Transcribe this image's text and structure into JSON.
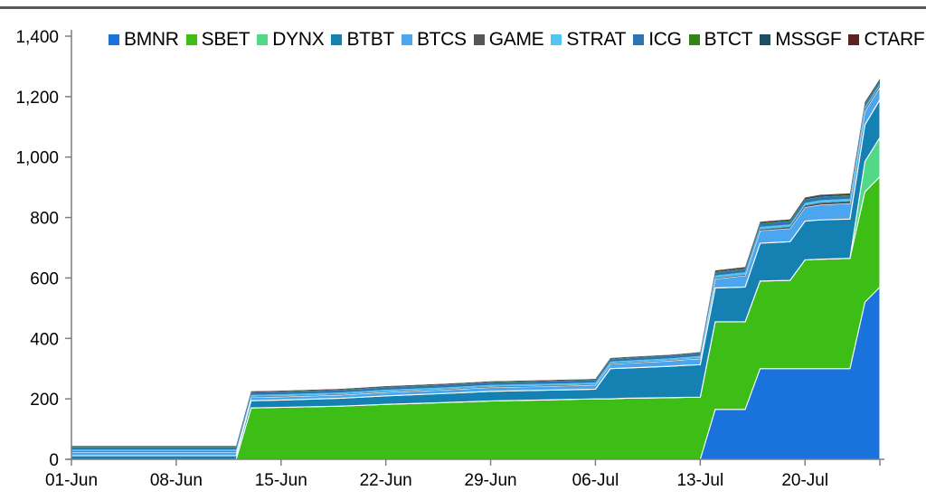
{
  "page": {
    "background": "#ffffff",
    "top_rule_color": "#58595b",
    "axis_color": "#7f7f7f",
    "text_color": "#000000"
  },
  "chart_data": {
    "type": "area",
    "stacked": true,
    "title": "",
    "xlabel": "",
    "ylabel": "",
    "grid": false,
    "legend_position": "top-inside",
    "ylim": [
      0,
      1400
    ],
    "y_ticks": [
      0,
      200,
      400,
      600,
      800,
      1000,
      1200,
      1400
    ],
    "y_tick_labels": [
      "0",
      "200",
      "400",
      "600",
      "800",
      "1,000",
      "1,200",
      "1,400"
    ],
    "x_range_days": [
      0,
      54
    ],
    "x_tick_days": [
      0,
      7,
      14,
      21,
      28,
      35,
      42,
      49,
      54
    ],
    "x_tick_labels": [
      "01-Jun",
      "08-Jun",
      "15-Jun",
      "22-Jun",
      "29-Jun",
      "06-Jul",
      "13-Jul",
      "20-Jul",
      ""
    ],
    "x_days": [
      0,
      4,
      11,
      12,
      14,
      18,
      21,
      25,
      28,
      32,
      35,
      36,
      37,
      40,
      41,
      42,
      43,
      45,
      46,
      48,
      49,
      50,
      52,
      53,
      54
    ],
    "point_labels": [
      "01-Jun",
      "05-Jun",
      "12-Jun",
      "13-Jun",
      "15-Jun",
      "19-Jun",
      "22-Jun",
      "26-Jun",
      "29-Jun",
      "03-Jul",
      "06-Jul",
      "07-Jul",
      "08-Jul",
      "11-Jul",
      "12-Jul",
      "13-Jul",
      "14-Jul",
      "16-Jul",
      "17-Jul",
      "19-Jul",
      "20-Jul",
      "21-Jul",
      "23-Jul",
      "24-Jul",
      "25-Jul"
    ],
    "series": [
      {
        "name": "BMNR",
        "color": "#1a72dd",
        "values": [
          0,
          0,
          0,
          0,
          0,
          0,
          0,
          0,
          0,
          0,
          0,
          0,
          0,
          0,
          0,
          0,
          165,
          165,
          300,
          300,
          300,
          300,
          300,
          520,
          570
        ]
      },
      {
        "name": "SBET",
        "color": "#3cbe17",
        "values": [
          0,
          0,
          0,
          170,
          172,
          176,
          182,
          188,
          193,
          197,
          200,
          200,
          202,
          204,
          205,
          205,
          290,
          290,
          290,
          292,
          360,
          362,
          365,
          365,
          365
        ]
      },
      {
        "name": "DYNX",
        "color": "#52d985",
        "values": [
          0,
          0,
          0,
          0,
          0,
          0,
          0,
          0,
          0,
          0,
          0,
          0,
          0,
          0,
          0,
          0,
          0,
          0,
          0,
          0,
          0,
          0,
          0,
          100,
          130
        ]
      },
      {
        "name": "BTBT",
        "color": "#1481b2",
        "values": [
          12,
          12,
          12,
          24,
          24,
          26,
          28,
          30,
          32,
          32,
          32,
          100,
          100,
          104,
          106,
          108,
          112,
          115,
          125,
          128,
          128,
          130,
          130,
          122,
          125
        ]
      },
      {
        "name": "BTCS",
        "color": "#4ca6ef",
        "values": [
          12,
          12,
          12,
          11,
          11,
          11,
          12,
          12,
          13,
          13,
          14,
          15,
          16,
          18,
          19,
          20,
          30,
          38,
          42,
          44,
          46,
          50,
          52,
          45,
          42
        ]
      },
      {
        "name": "GAME",
        "color": "#565656",
        "values": [
          2,
          2,
          2,
          2,
          2,
          2,
          2,
          2,
          2,
          2,
          2,
          2,
          2,
          2,
          2,
          2,
          3,
          3,
          4,
          5,
          6,
          7,
          7,
          6,
          5
        ]
      },
      {
        "name": "STRAT",
        "color": "#52c5f2",
        "values": [
          6,
          6,
          6,
          6,
          6,
          6,
          6,
          6,
          6,
          6,
          6,
          6,
          6,
          6,
          6,
          7,
          8,
          8,
          8,
          8,
          8,
          8,
          8,
          7,
          6
        ]
      },
      {
        "name": "ICG",
        "color": "#2e74b5",
        "values": [
          8,
          8,
          8,
          8,
          8,
          8,
          8,
          8,
          8,
          8,
          8,
          8,
          8,
          8,
          8,
          9,
          10,
          10,
          10,
          10,
          10,
          10,
          10,
          9,
          8
        ]
      },
      {
        "name": "BTCT",
        "color": "#338317",
        "values": [
          1,
          1,
          1,
          1,
          1,
          1,
          1,
          1,
          1,
          1,
          1,
          1,
          1,
          1,
          1,
          1,
          2,
          2,
          2,
          2,
          2,
          2,
          2,
          2,
          2
        ]
      },
      {
        "name": "MSSGF",
        "color": "#1c4f63",
        "values": [
          2,
          2,
          2,
          2,
          2,
          2,
          2,
          2,
          2,
          2,
          2,
          2,
          2,
          2,
          2,
          2,
          3,
          3,
          3,
          3,
          4,
          4,
          4,
          4,
          4
        ]
      },
      {
        "name": "CTARF",
        "color": "#5e2320",
        "values": [
          1,
          1,
          1,
          1,
          1,
          1,
          1,
          1,
          1,
          1,
          1,
          1,
          1,
          1,
          1,
          1,
          2,
          2,
          2,
          2,
          2,
          2,
          2,
          2,
          2
        ]
      }
    ]
  }
}
